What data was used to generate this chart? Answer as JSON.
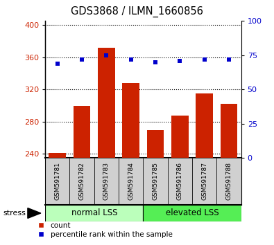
{
  "title": "GDS3868 / ILMN_1660856",
  "categories": [
    "GSM591781",
    "GSM591782",
    "GSM591783",
    "GSM591784",
    "GSM591785",
    "GSM591786",
    "GSM591787",
    "GSM591788"
  ],
  "bar_values": [
    241,
    300,
    372,
    328,
    270,
    288,
    315,
    302
  ],
  "percentile_values": [
    69,
    72,
    75,
    72,
    70,
    71,
    72,
    72
  ],
  "bar_color": "#cc2200",
  "percentile_color": "#0000cc",
  "ylim_left": [
    235,
    405
  ],
  "ylim_right": [
    0,
    100
  ],
  "yticks_left": [
    240,
    280,
    320,
    360,
    400
  ],
  "yticks_right": [
    0,
    25,
    50,
    75,
    100
  ],
  "group_labels": [
    "normal LSS",
    "elevated LSS"
  ],
  "group_colors_light": [
    "#bbffbb",
    "#55ee55"
  ],
  "group_ranges": [
    [
      0,
      4
    ],
    [
      4,
      8
    ]
  ],
  "stress_label": "stress",
  "legend_count": "count",
  "legend_percentile": "percentile rank within the sample",
  "tick_label_color_left": "#cc2200",
  "tick_label_color_right": "#0000cc",
  "label_bg_color": "#d0d0d0",
  "bar_bottom": 235
}
